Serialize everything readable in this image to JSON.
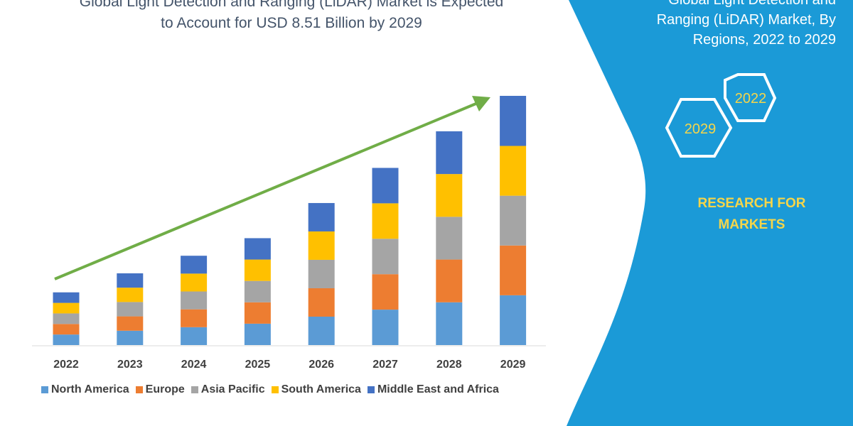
{
  "title_lines": [
    "Global Light Detection and Ranging (LiDAR) Market is Expected",
    "to Account for USD 8.51 Billion by 2029"
  ],
  "panel": {
    "title_lines": [
      "Global Light Detection and",
      "Ranging (LiDAR) Market, By",
      "Regions, 2022 to 2029"
    ],
    "hex_labels": [
      "2022",
      "2029"
    ],
    "brand_lines": [
      "RESEARCH FOR",
      "MARKETS"
    ],
    "background_color": "#1b9ad7",
    "accent_color": "#f5d54a"
  },
  "chart_data": {
    "type": "bar",
    "stacked": true,
    "categories": [
      "2022",
      "2023",
      "2024",
      "2025",
      "2026",
      "2027",
      "2028",
      "2029"
    ],
    "series": [
      {
        "name": "North America",
        "color": "#5b9bd5",
        "values": [
          0.36,
          0.49,
          0.61,
          0.73,
          0.97,
          1.21,
          1.46,
          1.7
        ]
      },
      {
        "name": "Europe",
        "color": "#ed7d31",
        "values": [
          0.36,
          0.49,
          0.61,
          0.73,
          0.97,
          1.21,
          1.46,
          1.7
        ]
      },
      {
        "name": "Asia Pacific",
        "color": "#a5a5a5",
        "values": [
          0.36,
          0.49,
          0.61,
          0.73,
          0.97,
          1.21,
          1.46,
          1.7
        ]
      },
      {
        "name": "South America",
        "color": "#ffc000",
        "values": [
          0.36,
          0.49,
          0.61,
          0.73,
          0.97,
          1.21,
          1.46,
          1.7
        ]
      },
      {
        "name": "Middle East and Africa",
        "color": "#4472c4",
        "values": [
          0.36,
          0.49,
          0.61,
          0.73,
          0.97,
          1.21,
          1.46,
          1.71
        ]
      }
    ],
    "ylim": [
      0,
      8.51
    ],
    "grid": false,
    "legend_position": "bottom",
    "trend_arrow_color": "#70ad47"
  }
}
